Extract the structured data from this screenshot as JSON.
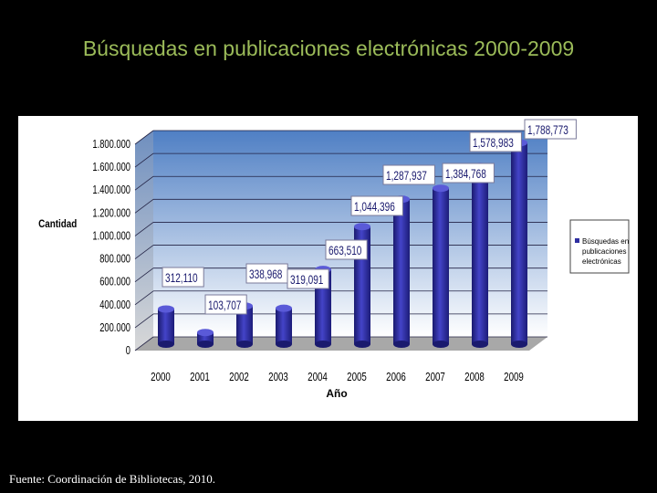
{
  "title": "Búsquedas en publicaciones electrónicas 2000-2009",
  "footer": "Fuente: Coordinación de Bibliotecas, 2010.",
  "colors": {
    "title": "#9bbb59",
    "bar": "#2e2ea0",
    "plot_background_top": "#4f7fc4",
    "plot_background_bottom": "#ffffff",
    "floor": "#a8a8a8"
  },
  "chart_data": {
    "type": "bar",
    "categories": [
      "2000",
      "2001",
      "2002",
      "2003",
      "2004",
      "2005",
      "2006",
      "2007",
      "2008",
      "2009"
    ],
    "values": [
      312110,
      103707,
      338968,
      319091,
      663510,
      1044396,
      1287937,
      1384768,
      1578983,
      1788773
    ],
    "data_labels": [
      "312,110",
      "103,707",
      "338,968",
      "319,091",
      "663,510",
      "1,044,396",
      "1,287,937",
      "1,384,768",
      "1,578,983",
      "1,788,773"
    ],
    "series": [
      {
        "name": "Búsquedas en publicaciones electrónicas",
        "values": [
          312110,
          103707,
          338968,
          319091,
          663510,
          1044396,
          1287937,
          1384768,
          1578983,
          1788773
        ]
      }
    ],
    "xlabel": "Año",
    "ylabel": "Cantidad",
    "ylim": [
      0,
      1800000
    ],
    "yticks": [
      0,
      200000,
      400000,
      600000,
      800000,
      1000000,
      1200000,
      1400000,
      1600000,
      1800000
    ],
    "ytick_labels": [
      "0",
      "200.000",
      "400.000",
      "600.000",
      "800.000",
      "1.000.000",
      "1.200.000",
      "1.400.000",
      "1.600.000",
      "1.800.000"
    ],
    "legend_position": "right",
    "grid": true,
    "style": "3d-cylinder"
  }
}
